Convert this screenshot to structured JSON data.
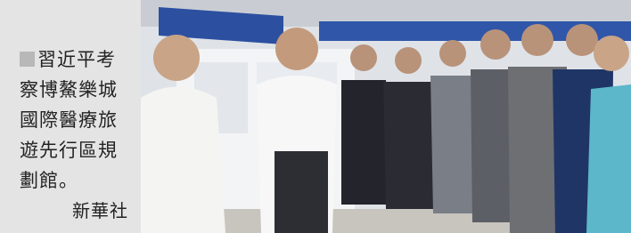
{
  "caption": {
    "lines": [
      "習近平考",
      "察博鰲樂城",
      "國際醫療旅",
      "遊先行區規",
      "劃館。"
    ],
    "credit": "新華社"
  }
}
